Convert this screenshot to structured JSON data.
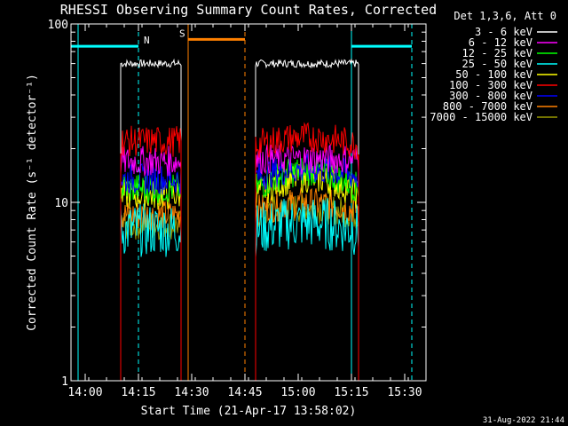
{
  "chart_data": {
    "type": "line",
    "title": "RHESSI Observing Summary Count Rates, Corrected",
    "xlabel": "Start Time (21-Apr-17 13:58:02)",
    "ylabel": "Corrected Count Rate (s⁻¹ detector⁻¹)",
    "yscale": "log",
    "ylim": [
      1,
      100
    ],
    "xlim": [
      "13:56",
      "15:36"
    ],
    "x_ticks": [
      "14:00",
      "14:15",
      "14:30",
      "14:45",
      "15:00",
      "15:15",
      "15:30"
    ],
    "y_ticks": [
      "1",
      "10",
      "100"
    ],
    "legend_title": "Det 1,3,6, Att 0",
    "legend_position": "top-right",
    "footer_date": "31-Aug-2022 21:44",
    "intervals": [
      {
        "segment": "orbit-1",
        "start": "14:10",
        "end": "14:27"
      },
      {
        "segment": "orbit-2",
        "start": "14:48",
        "end": "15:17"
      }
    ],
    "series": [
      {
        "name": "3 - 6 keV",
        "color": "#ffffff",
        "values": [
          60,
          60
        ]
      },
      {
        "name": "6 - 12 keV",
        "color": "#ff00ff",
        "values": [
          17,
          17.5
        ]
      },
      {
        "name": "12 - 25 keV",
        "color": "#00ff00",
        "values": [
          12,
          12
        ]
      },
      {
        "name": "25 - 50 keV",
        "color": "#00ffff",
        "values": [
          7,
          7
        ]
      },
      {
        "name": "50 - 100 keV",
        "color": "#ffff00",
        "values": [
          11,
          11
        ]
      },
      {
        "name": "100 - 300 keV",
        "color": "#ff0000",
        "values": [
          22,
          21
        ]
      },
      {
        "name": "300 - 800 keV",
        "color": "#0000ff",
        "values": [
          13.5,
          14
        ]
      },
      {
        "name": "800 - 7000 keV",
        "color": "#ff8000",
        "values": [
          8.5,
          9
        ]
      },
      {
        "name": "7000 - 15000 keV",
        "color": "#999900",
        "values": [
          7.5,
          8.5
        ]
      }
    ],
    "markers": [
      {
        "label": "N",
        "color": "#00ffff",
        "start": "13:56",
        "end": "14:15",
        "level": 75
      },
      {
        "label": "",
        "color": "#00ffff",
        "start": "15:15",
        "end": "15:32",
        "level": 75
      },
      {
        "label": "S",
        "color": "#ff8000",
        "start": "14:29",
        "end": "14:45",
        "level": 82
      }
    ],
    "vlines": [
      {
        "time": "13:58",
        "color": "#00ffff",
        "style": "solid"
      },
      {
        "time": "14:15",
        "color": "#00ffff",
        "style": "dashed"
      },
      {
        "time": "14:29",
        "color": "#ff8000",
        "style": "solid"
      },
      {
        "time": "14:45",
        "color": "#ff8000",
        "style": "dashed"
      },
      {
        "time": "15:15",
        "color": "#00ffff",
        "style": "solid"
      },
      {
        "time": "15:32",
        "color": "#00ffff",
        "style": "dashed"
      }
    ]
  }
}
